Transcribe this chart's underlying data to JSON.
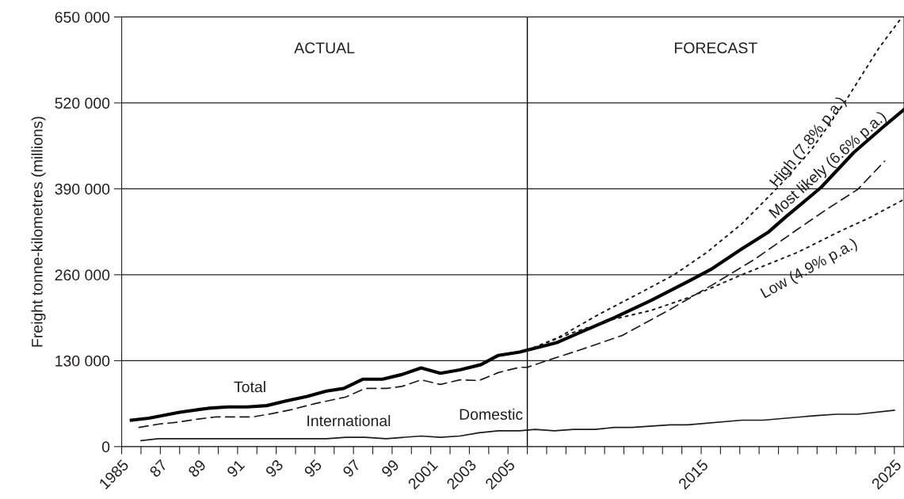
{
  "chart_data": {
    "type": "line",
    "ylabel": "Freight tonne-kilometres (millions)",
    "xlim": [
      1985,
      2025.5
    ],
    "xticks": [
      {
        "value": 1985,
        "label": "1985"
      },
      {
        "value": 1986,
        "label": null
      },
      {
        "value": 1987,
        "label": "87"
      },
      {
        "value": 1988,
        "label": null
      },
      {
        "value": 1989,
        "label": "89"
      },
      {
        "value": 1990,
        "label": null
      },
      {
        "value": 1991,
        "label": "91"
      },
      {
        "value": 1992,
        "label": null
      },
      {
        "value": 1993,
        "label": "93"
      },
      {
        "value": 1994,
        "label": null
      },
      {
        "value": 1995,
        "label": "95"
      },
      {
        "value": 1996,
        "label": null
      },
      {
        "value": 1997,
        "label": "97"
      },
      {
        "value": 1998,
        "label": null
      },
      {
        "value": 1999,
        "label": "99"
      },
      {
        "value": 2000,
        "label": null
      },
      {
        "value": 2001,
        "label": "2001"
      },
      {
        "value": 2002,
        "label": null
      },
      {
        "value": 2003,
        "label": "2003"
      },
      {
        "value": 2004,
        "label": null
      },
      {
        "value": 2005,
        "label": "2005"
      },
      {
        "value": 2006,
        "label": null
      },
      {
        "value": 2007,
        "label": null
      },
      {
        "value": 2008,
        "label": null
      },
      {
        "value": 2009,
        "label": null
      },
      {
        "value": 2010,
        "label": null
      },
      {
        "value": 2011,
        "label": null
      },
      {
        "value": 2012,
        "label": null
      },
      {
        "value": 2013,
        "label": null
      },
      {
        "value": 2014,
        "label": null
      },
      {
        "value": 2015,
        "label": "2015"
      },
      {
        "value": 2016,
        "label": null
      },
      {
        "value": 2017,
        "label": null
      },
      {
        "value": 2018,
        "label": null
      },
      {
        "value": 2019,
        "label": null
      },
      {
        "value": 2020,
        "label": null
      },
      {
        "value": 2021,
        "label": null
      },
      {
        "value": 2022,
        "label": null
      },
      {
        "value": 2023,
        "label": null
      },
      {
        "value": 2024,
        "label": null
      },
      {
        "value": 2025,
        "label": "2025"
      }
    ],
    "ylim": [
      0,
      650000
    ],
    "yticks": [
      {
        "value": 0,
        "label": "0"
      },
      {
        "value": 130000,
        "label": "130 000"
      },
      {
        "value": 260000,
        "label": "260 000"
      },
      {
        "value": 390000,
        "label": "390 000"
      },
      {
        "value": 520000,
        "label": "520 000"
      },
      {
        "value": 650000,
        "label": "650 000"
      }
    ],
    "grid": "y",
    "legend": false,
    "ref_lines": [
      {
        "axis": "x",
        "value": 2006,
        "label": null,
        "color": "#000000",
        "line_style": "solid"
      }
    ],
    "annotations": [
      "ACTUAL",
      "FORECAST",
      {
        "text": "Most likely (6.6% p.a.)",
        "x": 2020.5,
        "y": 372000
      }
    ],
    "series": [
      {
        "name": "Total",
        "color": "#000000",
        "line_style": "solid",
        "x": [
          1985.5,
          1986.4,
          1988.0,
          1989.5,
          1990.5,
          1991.5,
          1992.5,
          1993.5,
          1994.6,
          1995.6,
          1996.5,
          1997.5,
          1998.5,
          1999.5,
          2000.5,
          2001.5,
          2002.5,
          2003.6,
          2004.5,
          2005.6,
          2006,
          2007.5,
          2008.6,
          2010.5,
          2012.4,
          2014.4,
          2015.5,
          2017.1,
          2018.5,
          2019.4,
          2021.2,
          2022.9,
          2024.4,
          2025.5
        ],
        "values": [
          40000,
          43000,
          52000,
          58000,
          60000,
          60000,
          62000,
          69000,
          76000,
          84000,
          88000,
          102000,
          102000,
          109000,
          119000,
          111000,
          116000,
          124000,
          138000,
          143000,
          146000,
          157000,
          171000,
          195000,
          221000,
          251000,
          268000,
          299000,
          325000,
          348000,
          392000,
          445000,
          483000,
          510000
        ]
      },
      {
        "name": "International",
        "color": "#1a1a1a",
        "line_style": "dashed",
        "x": [
          1985.9,
          1986.9,
          1987.9,
          1988.8,
          1989.9,
          1991.8,
          1992.8,
          1993.8,
          1995.0,
          1996.6,
          1997.6,
          1998.7,
          1999.5,
          2000.5,
          2001.5,
          2002.5,
          2003.5,
          2004.5,
          2005.6,
          2006,
          2007,
          2008.7,
          2010.9,
          2013.3,
          2015.6,
          2017.8,
          2020.0,
          2021.5,
          2023.1,
          2024.5
        ],
        "values": [
          29000,
          34000,
          37000,
          41000,
          45000,
          45000,
          50000,
          56000,
          65000,
          75000,
          88000,
          88000,
          91000,
          101000,
          94000,
          101000,
          100000,
          112000,
          120000,
          120000,
          130000,
          146000,
          168000,
          206000,
          245000,
          284000,
          329000,
          359000,
          389000,
          432000
        ]
      },
      {
        "name": "Domestic",
        "color": "#1a1a1a",
        "line_style": "solid",
        "x": [
          1986,
          1986.9,
          1995.6,
          1996.6,
          1997.6,
          1998.7,
          2000.5,
          2001.5,
          2002.5,
          2003.5,
          2004.5,
          2005.6,
          2006.4,
          2007.4,
          2008.4,
          2009.5,
          2010.5,
          2011.4,
          2013.4,
          2014.3,
          2017.1,
          2018.2,
          2021,
          2022,
          2023.1,
          2025
        ],
        "values": [
          9000,
          12000,
          12000,
          14000,
          14000,
          12000,
          16000,
          14000,
          16000,
          21000,
          24000,
          24000,
          26000,
          24000,
          26000,
          26000,
          29000,
          29000,
          33000,
          33000,
          40000,
          40000,
          47000,
          49000,
          49000,
          55000
        ]
      },
      {
        "name": "High (7.8% p.a.)",
        "color": "#1a1a1a",
        "line_style": "dotted",
        "x": [
          2006,
          2007.6,
          2009.7,
          2011.8,
          2013.6,
          2015.3,
          2017.1,
          2019.0,
          2020.7,
          2022.5,
          2024.2,
          2025.3
        ],
        "values": [
          146000,
          165000,
          200000,
          232000,
          260000,
          294000,
          337000,
          393000,
          449000,
          524000,
          603000,
          646000
        ]
      },
      {
        "name": "Low (4.9% p.a.)",
        "color": "#1a1a1a",
        "line_style": "dotted",
        "x": [
          2006,
          2008.3,
          2010.5,
          2012.4,
          2014.4,
          2017.1,
          2020,
          2022.2,
          2023.7,
          2025.5
        ],
        "values": [
          146000,
          172000,
          193000,
          206000,
          226000,
          260000,
          294000,
          326000,
          346000,
          374000
        ]
      }
    ]
  }
}
